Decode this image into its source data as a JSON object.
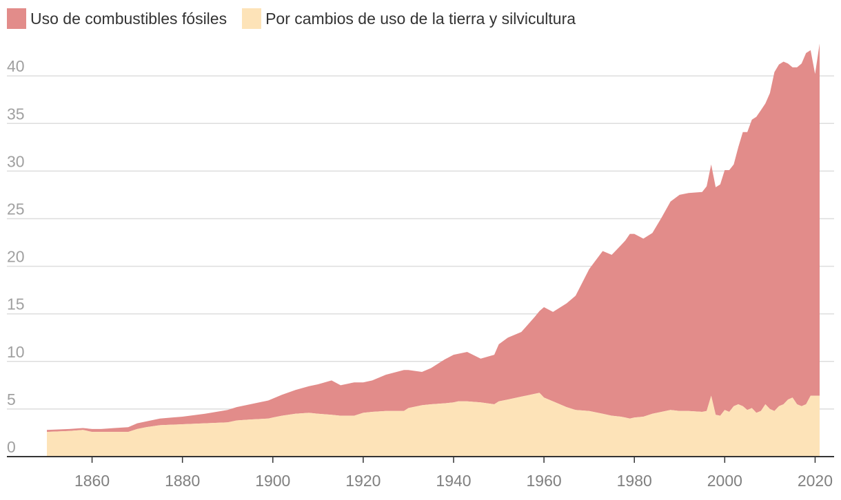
{
  "chart_data": {
    "type": "area",
    "stacked": true,
    "legend_position": "top-left",
    "grid": "horizontal",
    "colors": {
      "fossil": "#e28c8a",
      "landuse": "#fde3b8",
      "grid": "#dddddd",
      "axis": "#333333"
    },
    "ylim": [
      0,
      45
    ],
    "yticks": [
      0,
      5,
      10,
      15,
      20,
      25,
      30,
      35,
      40
    ],
    "xlim": [
      1840,
      2023
    ],
    "xticks": [
      1860,
      1880,
      1900,
      1920,
      1940,
      1960,
      1980,
      2000,
      2020
    ],
    "series": [
      {
        "name": "Por cambios de uso de la tierra y silvicultura",
        "key": "landuse",
        "x": [
          1850,
          1855,
          1858,
          1860,
          1862,
          1865,
          1868,
          1870,
          1872,
          1875,
          1880,
          1885,
          1890,
          1892,
          1895,
          1899,
          1900,
          1902,
          1905,
          1908,
          1910,
          1913,
          1915,
          1918,
          1920,
          1922,
          1925,
          1929,
          1930,
          1933,
          1935,
          1938,
          1940,
          1941,
          1943,
          1946,
          1949,
          1950,
          1952,
          1955,
          1958,
          1959,
          1960,
          1962,
          1965,
          1967,
          1970,
          1973,
          1975,
          1977,
          1978,
          1979,
          1980,
          1982,
          1984,
          1986,
          1988,
          1990,
          1992,
          1995,
          1996,
          1997,
          1998,
          1999,
          2000,
          2001,
          2002,
          2003,
          2004,
          2005,
          2006,
          2007,
          2008,
          2009,
          2010,
          2011,
          2012,
          2013,
          2014,
          2015,
          2016,
          2017,
          2018,
          2019,
          2020,
          2021
        ],
        "y": [
          2.6,
          2.7,
          2.8,
          2.6,
          2.6,
          2.6,
          2.6,
          2.9,
          3.1,
          3.3,
          3.4,
          3.5,
          3.6,
          3.8,
          3.9,
          4.0,
          4.1,
          4.3,
          4.5,
          4.6,
          4.5,
          4.4,
          4.3,
          4.3,
          4.6,
          4.7,
          4.8,
          4.8,
          5.1,
          5.4,
          5.5,
          5.6,
          5.7,
          5.8,
          5.8,
          5.7,
          5.5,
          5.8,
          6.0,
          6.3,
          6.6,
          6.7,
          6.2,
          5.8,
          5.2,
          4.9,
          4.8,
          4.5,
          4.3,
          4.2,
          4.1,
          4.0,
          4.1,
          4.2,
          4.5,
          4.7,
          4.9,
          4.8,
          4.8,
          4.7,
          4.8,
          6.4,
          4.4,
          4.3,
          4.9,
          4.7,
          5.3,
          5.5,
          5.3,
          4.9,
          5.1,
          4.6,
          4.8,
          5.5,
          5.0,
          4.8,
          5.3,
          5.5,
          6.0,
          6.2,
          5.5,
          5.3,
          5.5,
          6.4,
          6.4,
          6.4
        ]
      },
      {
        "name": "Uso de combustibles fósiles",
        "key": "fossil",
        "x": [
          1850,
          1855,
          1858,
          1860,
          1862,
          1865,
          1868,
          1870,
          1872,
          1875,
          1880,
          1885,
          1890,
          1892,
          1895,
          1899,
          1900,
          1902,
          1905,
          1908,
          1910,
          1913,
          1915,
          1918,
          1920,
          1922,
          1925,
          1929,
          1930,
          1933,
          1935,
          1938,
          1940,
          1941,
          1943,
          1946,
          1949,
          1950,
          1952,
          1955,
          1958,
          1959,
          1960,
          1962,
          1965,
          1967,
          1970,
          1973,
          1975,
          1977,
          1978,
          1979,
          1980,
          1982,
          1984,
          1986,
          1988,
          1990,
          1992,
          1995,
          1996,
          1997,
          1998,
          1999,
          2000,
          2001,
          2002,
          2003,
          2004,
          2005,
          2006,
          2007,
          2008,
          2009,
          2010,
          2011,
          2012,
          2013,
          2014,
          2015,
          2016,
          2017,
          2018,
          2019,
          2020,
          2021
        ],
        "y": [
          0.2,
          0.2,
          0.2,
          0.3,
          0.3,
          0.4,
          0.5,
          0.6,
          0.6,
          0.7,
          0.8,
          1.0,
          1.3,
          1.4,
          1.6,
          1.9,
          2.0,
          2.2,
          2.5,
          2.8,
          3.1,
          3.6,
          3.2,
          3.5,
          3.2,
          3.3,
          3.8,
          4.3,
          4.0,
          3.5,
          3.8,
          4.6,
          5.0,
          5.0,
          5.2,
          4.6,
          5.2,
          6.0,
          6.5,
          6.8,
          8.1,
          8.6,
          9.5,
          9.4,
          10.9,
          12.0,
          14.9,
          17.1,
          16.9,
          18.0,
          18.6,
          19.4,
          19.3,
          18.7,
          19.0,
          20.4,
          21.9,
          22.7,
          22.9,
          23.1,
          23.6,
          24.3,
          23.9,
          24.3,
          25.2,
          25.4,
          25.4,
          27.0,
          28.8,
          29.2,
          30.3,
          31.1,
          31.6,
          31.6,
          33.2,
          35.6,
          35.9,
          36.0,
          35.3,
          34.7,
          35.4,
          36.0,
          36.9,
          36.3,
          33.8,
          37.0
        ]
      }
    ]
  }
}
